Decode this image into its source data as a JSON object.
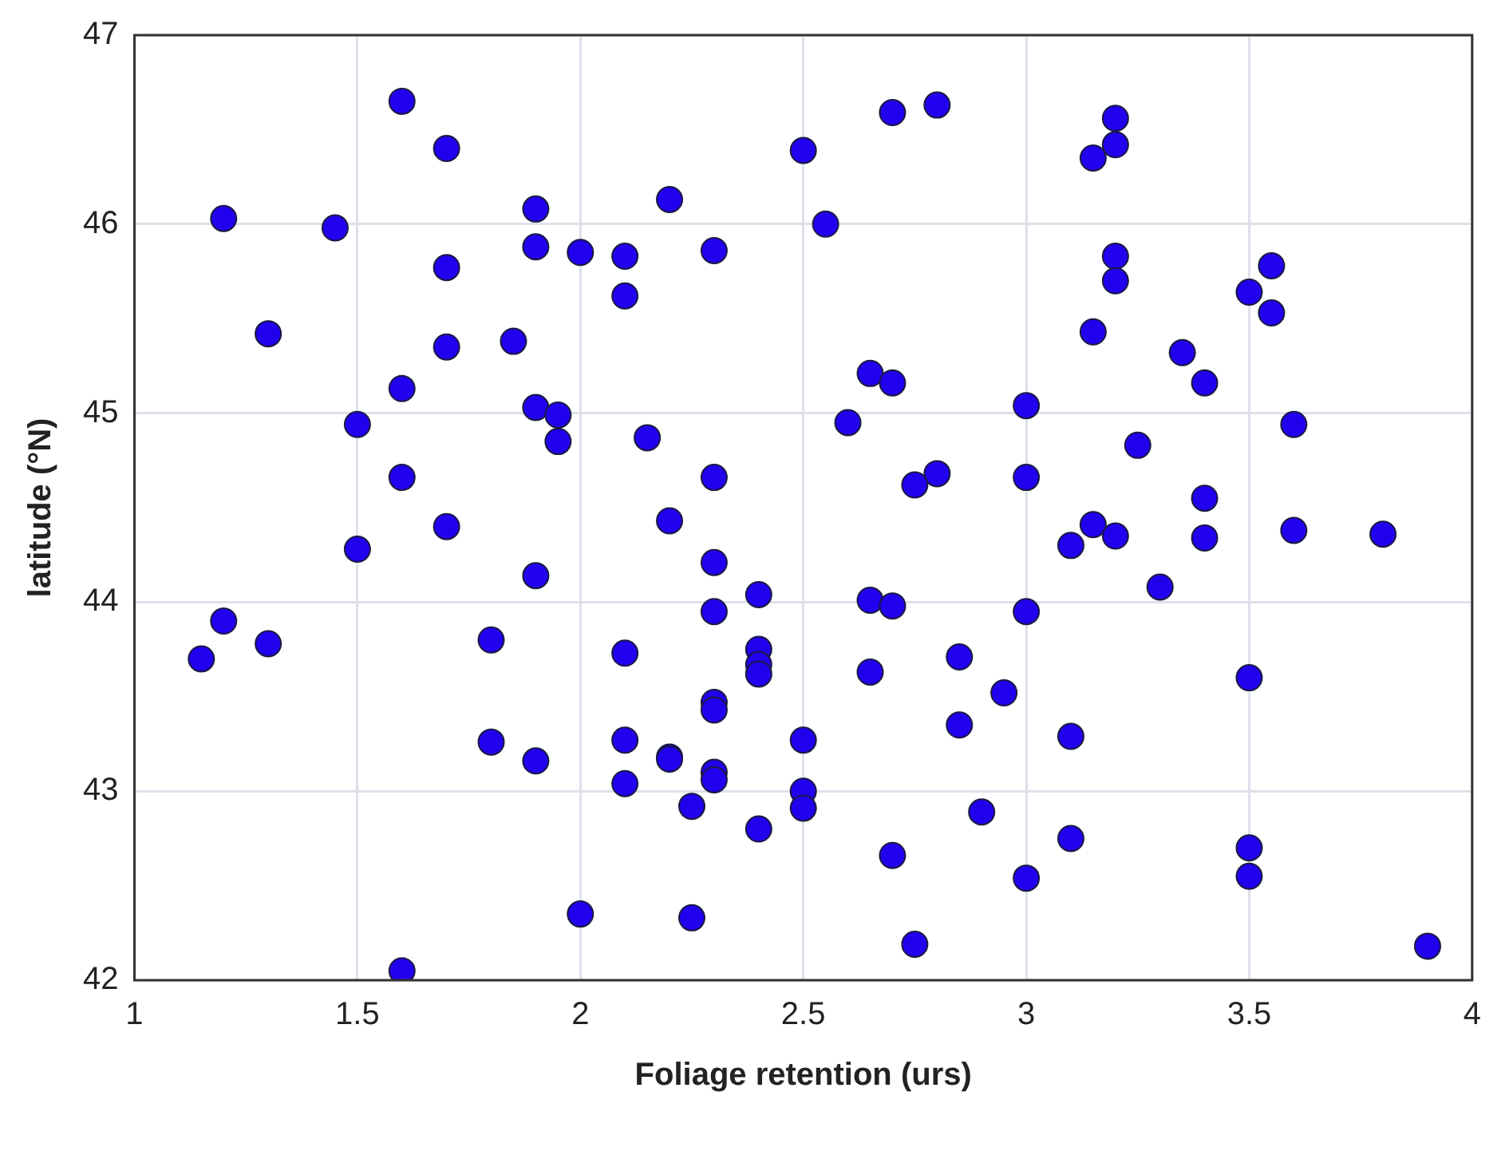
{
  "chart_data": {
    "type": "scatter",
    "xlabel": "Foliage retention (urs)",
    "ylabel": "latitude (°N)",
    "xlim": [
      1,
      4
    ],
    "xticks": [
      1,
      1.5,
      2,
      2.5,
      3,
      3.5,
      4
    ],
    "ylim": [
      42,
      47
    ],
    "yticks": [
      42,
      43,
      44,
      45,
      46,
      47
    ],
    "grid": true,
    "legend": false,
    "marker": "circle",
    "series": [
      {
        "color": "#2200ee",
        "x": [
          1.6,
          1.7,
          1.2,
          1.45,
          1.9,
          1.9,
          2.0,
          2.1,
          2.2,
          2.3,
          1.7,
          2.1,
          1.3,
          1.85,
          1.7,
          1.6,
          1.5,
          1.9,
          1.95,
          1.95,
          2.15,
          1.6,
          2.3,
          1.7,
          1.5,
          2.2,
          2.3,
          1.9,
          2.4,
          2.3,
          1.2,
          1.3,
          1.15,
          1.8,
          2.1,
          2.4,
          2.4,
          2.4,
          2.3,
          2.3,
          1.8,
          2.1,
          1.9,
          2.2,
          2.2,
          2.3,
          2.3,
          2.1,
          2.5,
          2.5,
          2.5,
          2.25,
          2.4,
          2.0,
          2.25,
          1.6,
          2.5,
          2.55,
          2.7,
          2.8,
          3.15,
          3.2,
          3.2,
          3.2,
          3.2,
          3.15,
          3.5,
          3.55,
          3.55,
          3.35,
          3.4,
          2.65,
          2.7,
          2.6,
          3.0,
          3.6,
          3.25,
          2.8,
          2.75,
          3.0,
          3.4,
          3.15,
          3.2,
          3.1,
          3.4,
          3.6,
          3.8,
          3.3,
          2.65,
          2.7,
          3.0,
          2.85,
          2.65,
          2.95,
          3.5,
          2.85,
          3.1,
          2.9,
          3.1,
          2.7,
          3.0,
          3.5,
          3.5,
          2.75,
          3.9
        ],
        "values": [
          46.65,
          46.4,
          46.03,
          45.98,
          46.08,
          45.88,
          45.85,
          45.83,
          46.13,
          45.86,
          45.77,
          45.62,
          45.42,
          45.38,
          45.35,
          45.13,
          44.94,
          45.03,
          44.99,
          44.85,
          44.87,
          44.66,
          44.66,
          44.4,
          44.28,
          44.43,
          44.21,
          44.14,
          44.04,
          43.95,
          43.9,
          43.78,
          43.7,
          43.8,
          43.73,
          43.75,
          43.67,
          43.62,
          43.47,
          43.43,
          43.26,
          43.27,
          43.16,
          43.18,
          43.17,
          43.1,
          43.06,
          43.04,
          43.27,
          43.0,
          42.91,
          42.92,
          42.8,
          42.35,
          42.33,
          42.05,
          46.39,
          46.0,
          46.59,
          46.63,
          46.35,
          46.42,
          46.56,
          45.83,
          45.7,
          45.43,
          45.64,
          45.78,
          45.53,
          45.32,
          45.16,
          45.21,
          45.16,
          44.95,
          45.04,
          44.94,
          44.83,
          44.68,
          44.62,
          44.66,
          44.55,
          44.41,
          44.35,
          44.3,
          44.34,
          44.38,
          44.36,
          44.08,
          44.01,
          43.98,
          43.95,
          43.71,
          43.63,
          43.52,
          43.6,
          43.35,
          43.29,
          42.89,
          42.75,
          42.66,
          42.54,
          42.7,
          42.55,
          42.19,
          42.18
        ]
      }
    ]
  }
}
